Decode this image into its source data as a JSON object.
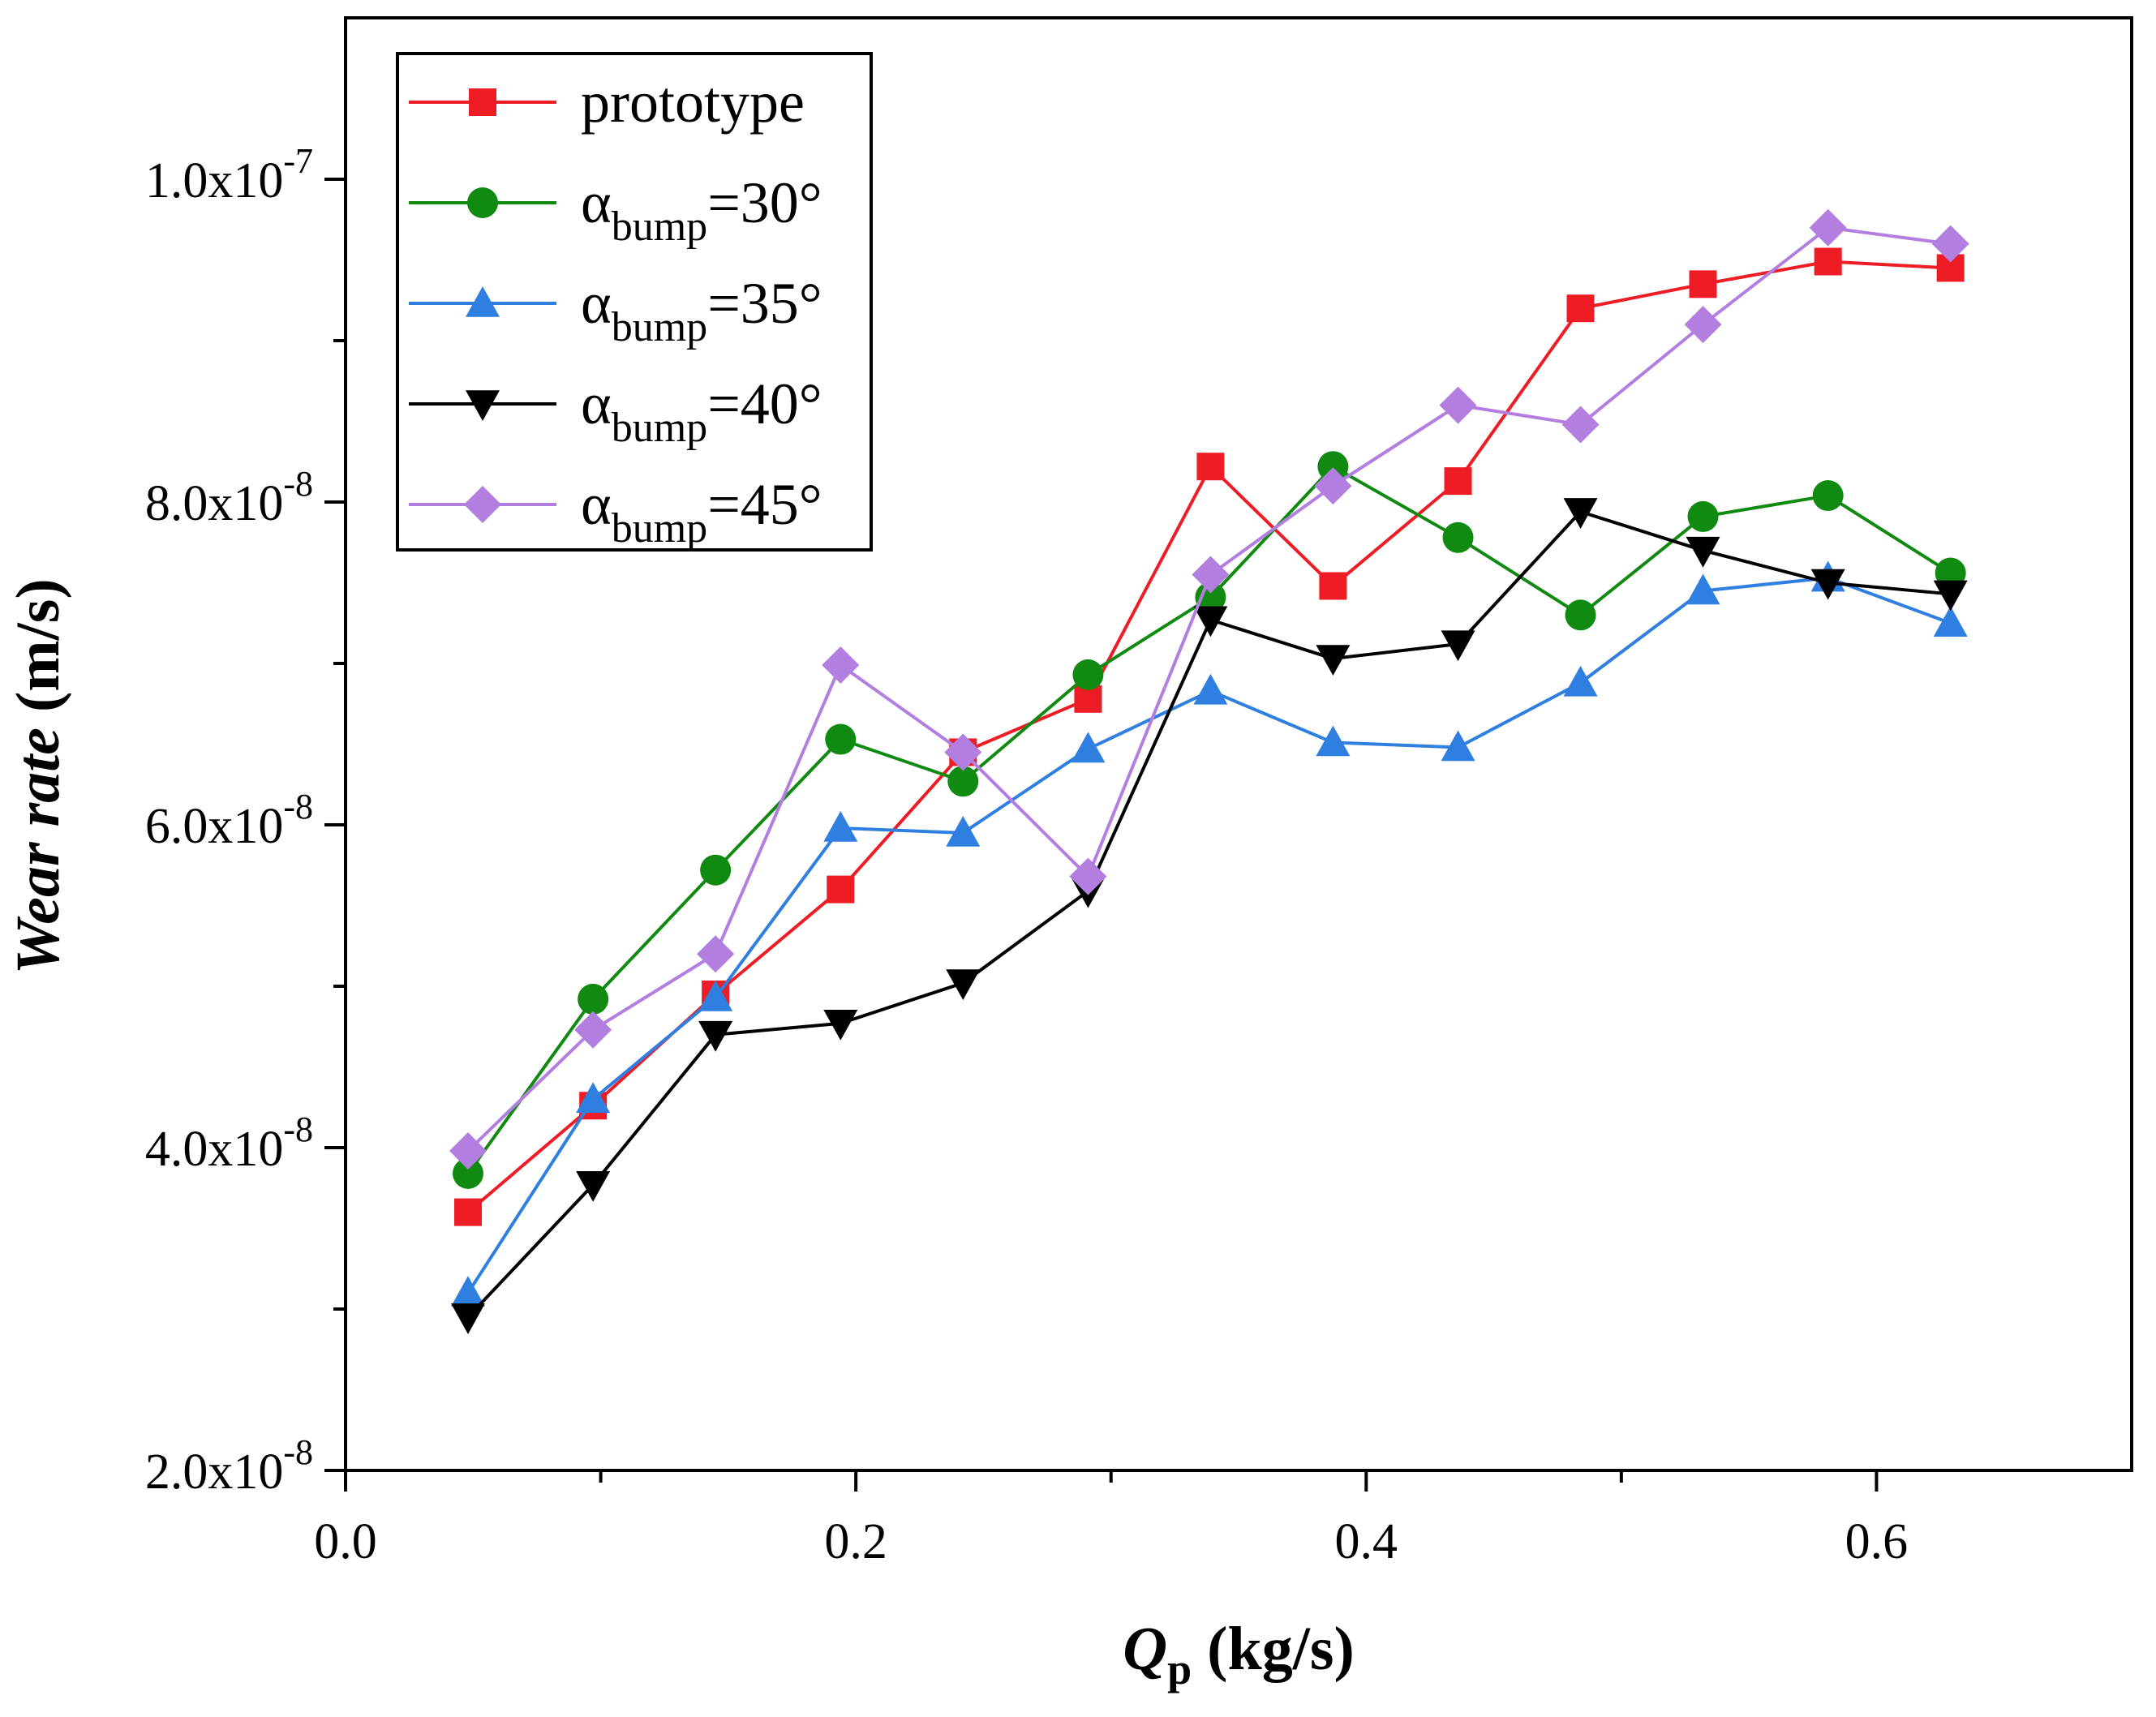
{
  "chart_data": {
    "type": "line",
    "title": "",
    "xlabel": {
      "main": "Q",
      "sub": "p",
      "unit": " (kg/s)"
    },
    "ylabel": {
      "main": "Wear rate",
      "unit": " (m/s)"
    },
    "xlim": [
      0.0,
      0.7
    ],
    "ylim": [
      2e-08,
      1.1e-07
    ],
    "x_ticks": [
      {
        "value": 0.0,
        "label": "0.0"
      },
      {
        "value": 0.2,
        "label": "0.2"
      },
      {
        "value": 0.4,
        "label": "0.4"
      },
      {
        "value": 0.6,
        "label": "0.6"
      }
    ],
    "y_ticks": [
      {
        "value": 2e-08,
        "mantissa": "2.0x10",
        "exponent": "-8"
      },
      {
        "value": 4e-08,
        "mantissa": "4.0x10",
        "exponent": "-8"
      },
      {
        "value": 6e-08,
        "mantissa": "6.0x10",
        "exponent": "-8"
      },
      {
        "value": 8e-08,
        "mantissa": "8.0x10",
        "exponent": "-8"
      },
      {
        "value": 1e-07,
        "mantissa": "1.0x10",
        "exponent": "-7"
      }
    ],
    "x_minor_ticks": [
      0.1,
      0.3,
      0.5
    ],
    "y_minor_ticks": [
      3e-08,
      5e-08,
      7e-08,
      9e-08
    ],
    "grid": false,
    "legend_position": "top-left",
    "x": [
      0.048,
      0.097,
      0.145,
      0.194,
      0.242,
      0.291,
      0.339,
      0.387,
      0.436,
      0.484,
      0.532,
      0.581,
      0.629
    ],
    "series": [
      {
        "name": "prototype",
        "label_main": "prototype",
        "label_sub": "",
        "label_tail": "",
        "color": "#ee1c24",
        "marker": "square",
        "values": [
          3.6e-08,
          4.26e-08,
          4.95e-08,
          5.6e-08,
          6.45e-08,
          6.78e-08,
          8.22e-08,
          7.48e-08,
          8.13e-08,
          9.2e-08,
          9.35e-08,
          9.49e-08,
          9.45e-08
        ]
      },
      {
        "name": "α_bump=30°",
        "label_main": "α",
        "label_sub": "bump",
        "label_tail": "=30°",
        "color": "#108a10",
        "marker": "circle",
        "values": [
          3.84e-08,
          4.92e-08,
          5.72e-08,
          6.53e-08,
          6.27e-08,
          6.93e-08,
          7.41e-08,
          8.22e-08,
          7.78e-08,
          7.3e-08,
          7.91e-08,
          8.04e-08,
          7.56e-08
        ]
      },
      {
        "name": "α_bump=35°",
        "label_main": "α",
        "label_sub": "bump",
        "label_tail": "=35°",
        "color": "#2f7fe0",
        "marker": "triangle-up",
        "values": [
          3.1e-08,
          4.3e-08,
          4.93e-08,
          5.98e-08,
          5.95e-08,
          6.47e-08,
          6.83e-08,
          6.51e-08,
          6.48e-08,
          6.88e-08,
          7.45e-08,
          7.53e-08,
          7.25e-08
        ]
      },
      {
        "name": "α_bump=40°",
        "label_main": "α",
        "label_sub": "bump",
        "label_tail": "=40°",
        "color": "#000000",
        "marker": "triangle-down",
        "values": [
          2.95e-08,
          3.77e-08,
          4.7e-08,
          4.77e-08,
          5.02e-08,
          5.59e-08,
          7.27e-08,
          7.03e-08,
          7.12e-08,
          7.94e-08,
          7.7e-08,
          7.5e-08,
          7.43e-08
        ]
      },
      {
        "name": "α_bump=45°",
        "label_main": "α",
        "label_sub": "bump",
        "label_tail": "=45°",
        "color": "#b27fe0",
        "marker": "diamond",
        "values": [
          3.98e-08,
          4.73e-08,
          5.2e-08,
          6.99e-08,
          6.45e-08,
          5.68e-08,
          7.55e-08,
          8.1e-08,
          8.6e-08,
          8.48e-08,
          9.1e-08,
          9.7e-08,
          9.6e-08
        ]
      }
    ]
  }
}
